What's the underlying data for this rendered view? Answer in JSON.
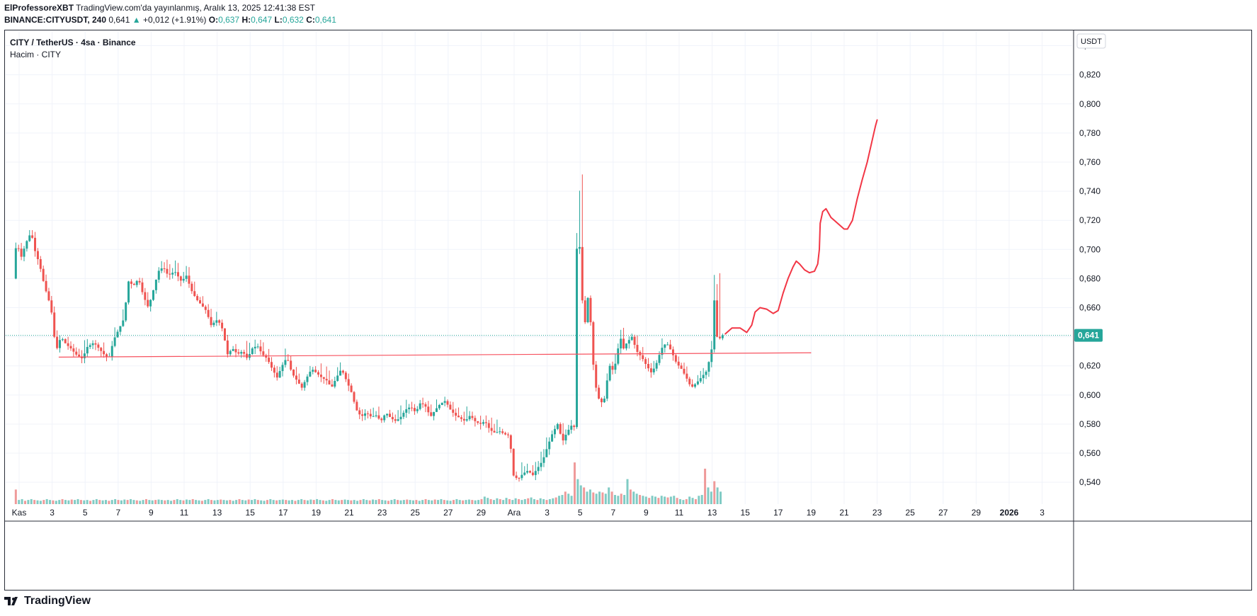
{
  "header": {
    "line1_author": "ElProfessoreXBT",
    "line1_rest": "TradingView.com'da yayınlanmış, Aralık 13, 2025 12:41:38 EST",
    "symbol": "BINANCE:CITYUSDT, 240",
    "last": "0,641",
    "up_arrow": "▲",
    "change": "+0,012 (+1.91%)",
    "o_label": "O:",
    "o_val": "0,637",
    "h_label": "H:",
    "h_val": "0,647",
    "l_label": "L:",
    "l_val": "0,632",
    "c_label": "C:",
    "c_val": "0,641"
  },
  "legend": {
    "title": "CITY / TetherUS · 4sa · Binance",
    "volume": "Hacim · CITY"
  },
  "footer": {
    "brand": "TradingView"
  },
  "chart_data": {
    "type": "candlestick",
    "currency": "USDT",
    "last_price": 0.641,
    "last_price_label": "0,641",
    "ylim": [
      0.525,
      0.85
    ],
    "y_ticks": [
      0.54,
      0.56,
      0.58,
      0.6,
      0.62,
      0.64,
      0.66,
      0.68,
      0.7,
      0.72,
      0.74,
      0.76,
      0.78,
      0.8,
      0.82,
      0.84
    ],
    "y_tick_labels": [
      "0,540",
      "0,560",
      "0,580",
      "0,600",
      "0,620",
      "0,640",
      "0,660",
      "0,680",
      "0,700",
      "0,720",
      "0,740",
      "0,760",
      "0,780",
      "0,800",
      "0,820",
      "0,840"
    ],
    "x_ticks": [
      {
        "day": 1,
        "label": "Kas"
      },
      {
        "day": 3,
        "label": "3"
      },
      {
        "day": 5,
        "label": "5"
      },
      {
        "day": 7,
        "label": "7"
      },
      {
        "day": 9,
        "label": "9"
      },
      {
        "day": 11,
        "label": "11"
      },
      {
        "day": 13,
        "label": "13"
      },
      {
        "day": 15,
        "label": "15"
      },
      {
        "day": 17,
        "label": "17"
      },
      {
        "day": 19,
        "label": "19"
      },
      {
        "day": 21,
        "label": "21"
      },
      {
        "day": 23,
        "label": "23"
      },
      {
        "day": 25,
        "label": "25"
      },
      {
        "day": 27,
        "label": "27"
      },
      {
        "day": 29,
        "label": "29"
      },
      {
        "day": 31,
        "label": "Ara"
      },
      {
        "day": 33,
        "label": "3"
      },
      {
        "day": 35,
        "label": "5"
      },
      {
        "day": 37,
        "label": "7"
      },
      {
        "day": 39,
        "label": "9"
      },
      {
        "day": 41,
        "label": "11"
      },
      {
        "day": 43,
        "label": "13"
      },
      {
        "day": 45,
        "label": "15"
      },
      {
        "day": 47,
        "label": "17"
      },
      {
        "day": 49,
        "label": "19"
      },
      {
        "day": 51,
        "label": "21"
      },
      {
        "day": 53,
        "label": "23"
      },
      {
        "day": 55,
        "label": "25"
      },
      {
        "day": 57,
        "label": "27"
      },
      {
        "day": 59,
        "label": "29"
      },
      {
        "day": 61,
        "label": "2026"
      },
      {
        "day": 63,
        "label": "3"
      }
    ],
    "price_path": [
      [
        0.8,
        0.68
      ],
      [
        1.0,
        0.705
      ],
      [
        1.3,
        0.695
      ],
      [
        1.6,
        0.705
      ],
      [
        1.9,
        0.712
      ],
      [
        2.1,
        0.7
      ],
      [
        2.4,
        0.69
      ],
      [
        2.7,
        0.675
      ],
      [
        3.1,
        0.66
      ],
      [
        3.4,
        0.63
      ],
      [
        3.7,
        0.64
      ],
      [
        4.0,
        0.635
      ],
      [
        4.3,
        0.632
      ],
      [
        4.6,
        0.628
      ],
      [
        5.0,
        0.625
      ],
      [
        5.3,
        0.633
      ],
      [
        5.7,
        0.636
      ],
      [
        6.0,
        0.632
      ],
      [
        6.3,
        0.628
      ],
      [
        6.6,
        0.625
      ],
      [
        6.9,
        0.638
      ],
      [
        7.2,
        0.645
      ],
      [
        7.5,
        0.652
      ],
      [
        7.8,
        0.678
      ],
      [
        8.1,
        0.675
      ],
      [
        8.4,
        0.68
      ],
      [
        8.7,
        0.668
      ],
      [
        9.0,
        0.66
      ],
      [
        9.3,
        0.672
      ],
      [
        9.6,
        0.685
      ],
      [
        9.9,
        0.688
      ],
      [
        10.2,
        0.682
      ],
      [
        10.6,
        0.685
      ],
      [
        11.0,
        0.678
      ],
      [
        11.3,
        0.682
      ],
      [
        11.6,
        0.672
      ],
      [
        11.9,
        0.666
      ],
      [
        12.2,
        0.662
      ],
      [
        12.5,
        0.658
      ],
      [
        12.8,
        0.648
      ],
      [
        13.2,
        0.652
      ],
      [
        13.5,
        0.645
      ],
      [
        13.8,
        0.628
      ],
      [
        14.1,
        0.632
      ],
      [
        14.4,
        0.628
      ],
      [
        14.7,
        0.63
      ],
      [
        15.0,
        0.625
      ],
      [
        15.3,
        0.632
      ],
      [
        15.6,
        0.634
      ],
      [
        15.9,
        0.628
      ],
      [
        16.2,
        0.625
      ],
      [
        16.5,
        0.618
      ],
      [
        16.8,
        0.612
      ],
      [
        17.1,
        0.62
      ],
      [
        17.4,
        0.626
      ],
      [
        17.7,
        0.615
      ],
      [
        18.0,
        0.61
      ],
      [
        18.3,
        0.605
      ],
      [
        18.6,
        0.612
      ],
      [
        18.9,
        0.618
      ],
      [
        19.2,
        0.615
      ],
      [
        19.5,
        0.612
      ],
      [
        19.8,
        0.61
      ],
      [
        20.1,
        0.605
      ],
      [
        20.4,
        0.612
      ],
      [
        20.7,
        0.618
      ],
      [
        21.0,
        0.61
      ],
      [
        21.3,
        0.602
      ],
      [
        21.6,
        0.59
      ],
      [
        21.9,
        0.585
      ],
      [
        22.2,
        0.588
      ],
      [
        22.5,
        0.585
      ],
      [
        22.8,
        0.586
      ],
      [
        23.1,
        0.582
      ],
      [
        23.4,
        0.588
      ],
      [
        23.7,
        0.584
      ],
      [
        24.0,
        0.582
      ],
      [
        24.3,
        0.585
      ],
      [
        24.6,
        0.59
      ],
      [
        24.9,
        0.592
      ],
      [
        25.2,
        0.588
      ],
      [
        25.5,
        0.595
      ],
      [
        25.8,
        0.592
      ],
      [
        26.1,
        0.585
      ],
      [
        26.4,
        0.59
      ],
      [
        26.7,
        0.594
      ],
      [
        27.0,
        0.596
      ],
      [
        27.3,
        0.59
      ],
      [
        27.6,
        0.586
      ],
      [
        27.9,
        0.584
      ],
      [
        28.2,
        0.582
      ],
      [
        28.5,
        0.586
      ],
      [
        28.8,
        0.582
      ],
      [
        29.1,
        0.58
      ],
      [
        29.4,
        0.582
      ],
      [
        29.7,
        0.576
      ],
      [
        30.0,
        0.574
      ],
      [
        30.3,
        0.575
      ],
      [
        30.6,
        0.573
      ],
      [
        30.9,
        0.572
      ],
      [
        31.1,
        0.545
      ],
      [
        31.4,
        0.542
      ],
      [
        31.7,
        0.546
      ],
      [
        32.0,
        0.548
      ],
      [
        32.3,
        0.545
      ],
      [
        32.6,
        0.55
      ],
      [
        32.9,
        0.555
      ],
      [
        33.2,
        0.565
      ],
      [
        33.5,
        0.574
      ],
      [
        33.8,
        0.58
      ],
      [
        34.1,
        0.568
      ],
      [
        34.4,
        0.575
      ],
      [
        34.7,
        0.58
      ],
      [
        34.8,
        0.578
      ],
      [
        35.0,
        0.725
      ],
      [
        35.2,
        0.69
      ],
      [
        35.4,
        0.64
      ],
      [
        35.6,
        0.67
      ],
      [
        35.8,
        0.65
      ],
      [
        36.0,
        0.615
      ],
      [
        36.2,
        0.6
      ],
      [
        36.4,
        0.595
      ],
      [
        36.6,
        0.595
      ],
      [
        36.8,
        0.61
      ],
      [
        37.0,
        0.622
      ],
      [
        37.2,
        0.615
      ],
      [
        37.4,
        0.628
      ],
      [
        37.6,
        0.64
      ],
      [
        37.8,
        0.632
      ],
      [
        38.0,
        0.636
      ],
      [
        38.3,
        0.64
      ],
      [
        38.6,
        0.63
      ],
      [
        38.9,
        0.626
      ],
      [
        39.2,
        0.62
      ],
      [
        39.5,
        0.615
      ],
      [
        39.8,
        0.622
      ],
      [
        40.1,
        0.632
      ],
      [
        40.4,
        0.636
      ],
      [
        40.7,
        0.63
      ],
      [
        41.0,
        0.622
      ],
      [
        41.3,
        0.618
      ],
      [
        41.6,
        0.612
      ],
      [
        41.9,
        0.605
      ],
      [
        42.2,
        0.608
      ],
      [
        42.5,
        0.612
      ],
      [
        42.8,
        0.616
      ],
      [
        43.1,
        0.628
      ],
      [
        43.2,
        0.638
      ],
      [
        43.3,
        0.665
      ],
      [
        43.5,
        0.635
      ],
      [
        43.7,
        0.641
      ]
    ],
    "volume": [
      0.35,
      0.1,
      0.12,
      0.08,
      0.1,
      0.12,
      0.1,
      0.09,
      0.08,
      0.1,
      0.12,
      0.1,
      0.09,
      0.08,
      0.1,
      0.12,
      0.1,
      0.09,
      0.11,
      0.1,
      0.12,
      0.1,
      0.09,
      0.1,
      0.08,
      0.1,
      0.12,
      0.1,
      0.09,
      0.1,
      0.08,
      0.1,
      0.12,
      0.1,
      0.09,
      0.11,
      0.1,
      0.12,
      0.1,
      0.09,
      0.08,
      0.1,
      0.12,
      0.1,
      0.09,
      0.1,
      0.11,
      0.1,
      0.09,
      0.1,
      0.08,
      0.1,
      0.12,
      0.1,
      0.09,
      0.11,
      0.1,
      0.12,
      0.1,
      0.09,
      0.08,
      0.1,
      0.12,
      0.1,
      0.09,
      0.1,
      0.11,
      0.1,
      0.09,
      0.1,
      0.08,
      0.1,
      0.12,
      0.1,
      0.09,
      0.11,
      0.1,
      0.12,
      0.1,
      0.09,
      0.08,
      0.1,
      0.12,
      0.1,
      0.09,
      0.1,
      0.11,
      0.1,
      0.09,
      0.1,
      0.08,
      0.1,
      0.12,
      0.1,
      0.09,
      0.11,
      0.1,
      0.12,
      0.1,
      0.09,
      0.08,
      0.1,
      0.12,
      0.1,
      0.09,
      0.1,
      0.11,
      0.1,
      0.09,
      0.1,
      0.08,
      0.1,
      0.12,
      0.1,
      0.09,
      0.11,
      0.1,
      0.12,
      0.1,
      0.09,
      0.08,
      0.1,
      0.12,
      0.1,
      0.09,
      0.1,
      0.11,
      0.1,
      0.09,
      0.1,
      0.08,
      0.1,
      0.12,
      0.1,
      0.09,
      0.11,
      0.1,
      0.12,
      0.1,
      0.09,
      0.08,
      0.1,
      0.12,
      0.1,
      0.09,
      0.1,
      0.11,
      0.1,
      0.09,
      0.1,
      0.12,
      0.18,
      0.15,
      0.12,
      0.1,
      0.14,
      0.12,
      0.1,
      0.15,
      0.12,
      0.1,
      0.14,
      0.12,
      0.1,
      0.12,
      0.14,
      0.16,
      0.12,
      0.1,
      0.14,
      0.12,
      0.1,
      0.12,
      0.14,
      0.16,
      0.2,
      0.22,
      0.3,
      0.25,
      0.2,
      1.0,
      0.6,
      0.45,
      0.4,
      0.3,
      0.35,
      0.28,
      0.25,
      0.3,
      0.28,
      0.25,
      0.4,
      0.3,
      0.22,
      0.2,
      0.25,
      0.22,
      0.6,
      0.35,
      0.3,
      0.25,
      0.22,
      0.2,
      0.18,
      0.15,
      0.2,
      0.18,
      0.15,
      0.2,
      0.18,
      0.16,
      0.18,
      0.2,
      0.15,
      0.12,
      0.1,
      0.12,
      0.18,
      0.15,
      0.12,
      0.2,
      0.22,
      0.85,
      0.4,
      0.3,
      0.55,
      0.4,
      0.3
    ],
    "support_line": {
      "from": [
        3.4,
        0.626
      ],
      "to": [
        49.0,
        0.629
      ]
    },
    "projection_path": [
      [
        43.8,
        0.642
      ],
      [
        44.2,
        0.646
      ],
      [
        44.7,
        0.646
      ],
      [
        45.1,
        0.643
      ],
      [
        45.4,
        0.648
      ],
      [
        45.6,
        0.657
      ],
      [
        45.9,
        0.66
      ],
      [
        46.3,
        0.659
      ],
      [
        46.7,
        0.656
      ],
      [
        47.0,
        0.658
      ],
      [
        47.3,
        0.67
      ],
      [
        47.6,
        0.68
      ],
      [
        47.9,
        0.688
      ],
      [
        48.1,
        0.692
      ],
      [
        48.3,
        0.69
      ],
      [
        48.6,
        0.686
      ],
      [
        48.9,
        0.684
      ],
      [
        49.2,
        0.685
      ],
      [
        49.4,
        0.69
      ],
      [
        49.5,
        0.7
      ],
      [
        49.55,
        0.718
      ],
      [
        49.7,
        0.726
      ],
      [
        49.9,
        0.728
      ],
      [
        50.2,
        0.722
      ],
      [
        50.5,
        0.719
      ],
      [
        50.8,
        0.716
      ],
      [
        51.0,
        0.714
      ],
      [
        51.2,
        0.714
      ],
      [
        51.5,
        0.72
      ],
      [
        51.8,
        0.735
      ],
      [
        52.1,
        0.748
      ],
      [
        52.4,
        0.76
      ],
      [
        52.7,
        0.775
      ],
      [
        52.9,
        0.785
      ],
      [
        53.0,
        0.789
      ]
    ]
  },
  "colors": {
    "up": "#26a69a",
    "down": "#ef5350",
    "grid": "#f0f3fa",
    "axis_text": "#131722",
    "drawing": "#f23645",
    "support": "#f7525f",
    "last_price_bg": "#26a69a"
  }
}
